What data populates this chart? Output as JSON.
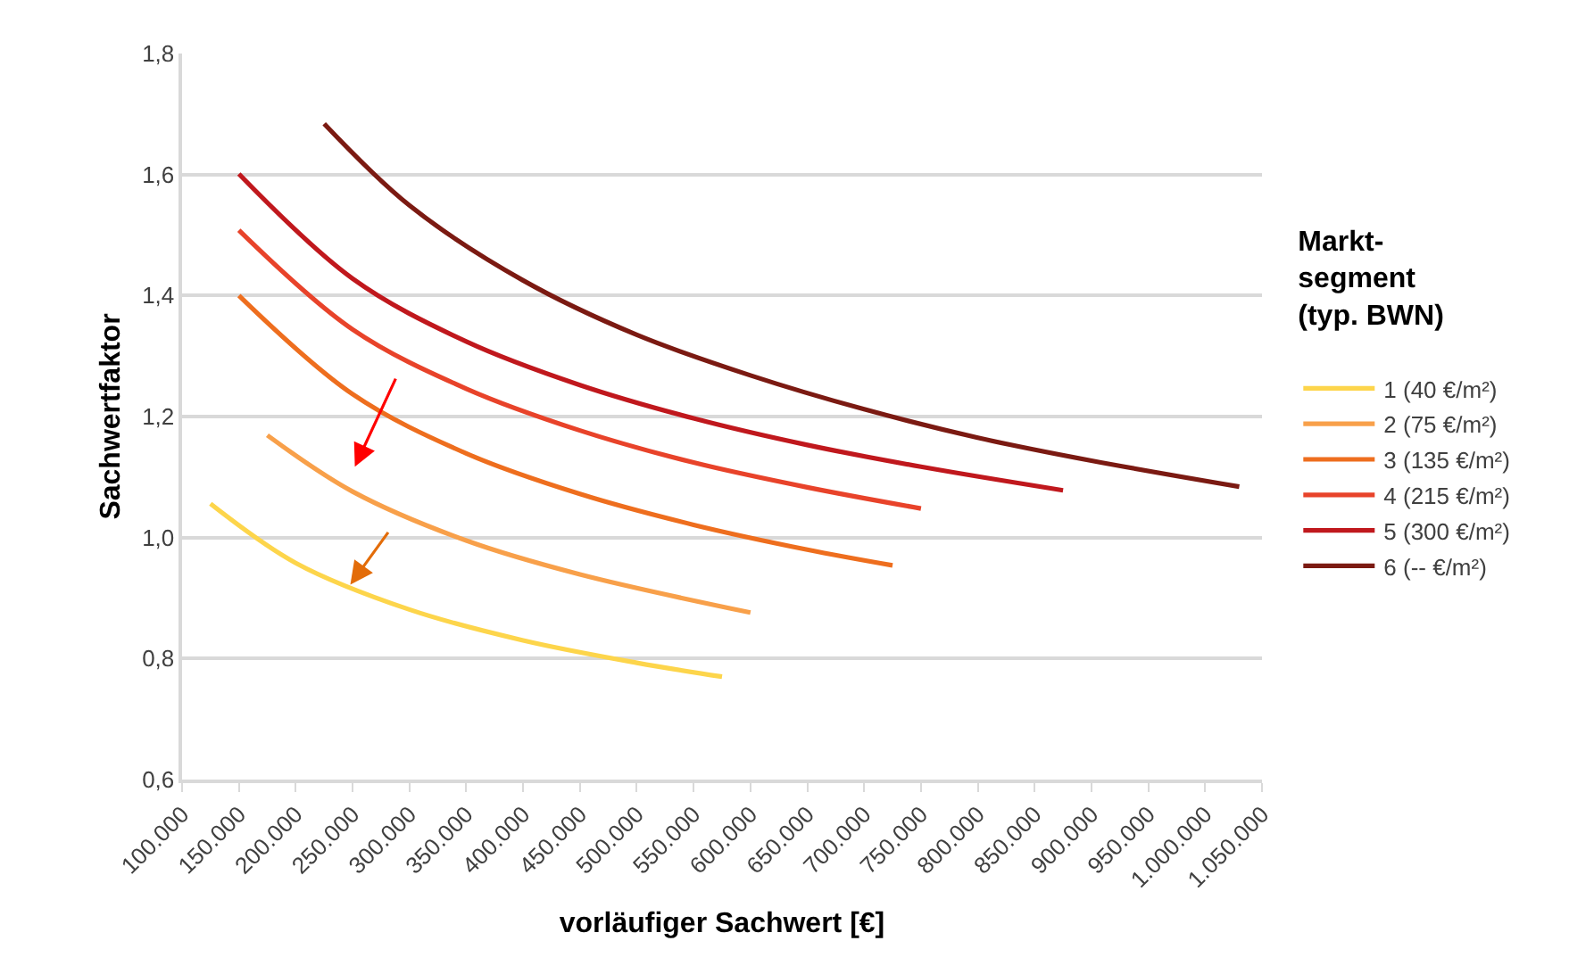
{
  "chart_data": {
    "type": "line",
    "xlabel": "vorläufiger Sachwert [€]",
    "ylabel": "Sachwertfaktor",
    "legend_title": "Markt-\nsegment\n(typ. BWN)",
    "xlim": [
      100000,
      1050000
    ],
    "xticks": [
      {
        "value": 100000,
        "label": "100.000"
      },
      {
        "value": 150000,
        "label": "150.000"
      },
      {
        "value": 200000,
        "label": "200.000"
      },
      {
        "value": 250000,
        "label": "250.000"
      },
      {
        "value": 300000,
        "label": "300.000"
      },
      {
        "value": 350000,
        "label": "350.000"
      },
      {
        "value": 400000,
        "label": "400.000"
      },
      {
        "value": 450000,
        "label": "450.000"
      },
      {
        "value": 500000,
        "label": "500.000"
      },
      {
        "value": 550000,
        "label": "550.000"
      },
      {
        "value": 600000,
        "label": "600.000"
      },
      {
        "value": 650000,
        "label": "650.000"
      },
      {
        "value": 700000,
        "label": "700.000"
      },
      {
        "value": 750000,
        "label": "750.000"
      },
      {
        "value": 800000,
        "label": "800.000"
      },
      {
        "value": 850000,
        "label": "850.000"
      },
      {
        "value": 900000,
        "label": "900.000"
      },
      {
        "value": 950000,
        "label": "950.000"
      },
      {
        "value": 1000000,
        "label": "1.000.000"
      },
      {
        "value": 1050000,
        "label": "1.050.000"
      }
    ],
    "ylim": [
      0.6,
      1.8
    ],
    "yticks": [
      {
        "value": 0.6,
        "label": "0,6"
      },
      {
        "value": 0.8,
        "label": "0,8"
      },
      {
        "value": 1.0,
        "label": "1,0"
      },
      {
        "value": 1.2,
        "label": "1,2"
      },
      {
        "value": 1.4,
        "label": "1,4"
      },
      {
        "value": 1.6,
        "label": "1,6"
      },
      {
        "value": 1.8,
        "label": "1,8"
      }
    ],
    "grid": "y",
    "legend": "right",
    "marker": "none",
    "line_style": "solid",
    "series": [
      {
        "name": "1 (40 €/m²)",
        "color": "#fdd54b",
        "x": [
          125000,
          200000,
          300000,
          400000,
          500000,
          575000
        ],
        "values": [
          1.056,
          0.958,
          0.881,
          0.83,
          0.793,
          0.77
        ]
      },
      {
        "name": "2 (75 €/m²)",
        "color": "#f8a04a",
        "x": [
          175000,
          250000,
          350000,
          450000,
          600000
        ],
        "values": [
          1.169,
          1.076,
          0.995,
          0.939,
          0.876
        ]
      },
      {
        "name": "3 (135 €/m²)",
        "color": "#ee6e1e",
        "x": [
          150000,
          250000,
          350000,
          450000,
          550000,
          650000,
          725000
        ],
        "values": [
          1.4,
          1.237,
          1.139,
          1.072,
          1.021,
          0.98,
          0.954
        ]
      },
      {
        "name": "4 (215 €/m²)",
        "color": "#e8432a",
        "x": [
          150000,
          250000,
          350000,
          450000,
          550000,
          650000,
          750000
        ],
        "values": [
          1.508,
          1.344,
          1.246,
          1.177,
          1.124,
          1.083,
          1.048
        ]
      },
      {
        "name": "5 (300 €/m²)",
        "color": "#c0181d",
        "x": [
          150000,
          250000,
          350000,
          450000,
          550000,
          650000,
          750000,
          875000
        ],
        "values": [
          1.601,
          1.428,
          1.324,
          1.252,
          1.197,
          1.153,
          1.117,
          1.078
        ]
      },
      {
        "name": "6 (-- €/m²)",
        "color": "#7b1a12",
        "x": [
          225000,
          300000,
          400000,
          500000,
          600000,
          700000,
          800000,
          900000,
          1030000
        ],
        "values": [
          1.684,
          1.549,
          1.425,
          1.335,
          1.268,
          1.212,
          1.165,
          1.127,
          1.084
        ]
      }
    ]
  }
}
